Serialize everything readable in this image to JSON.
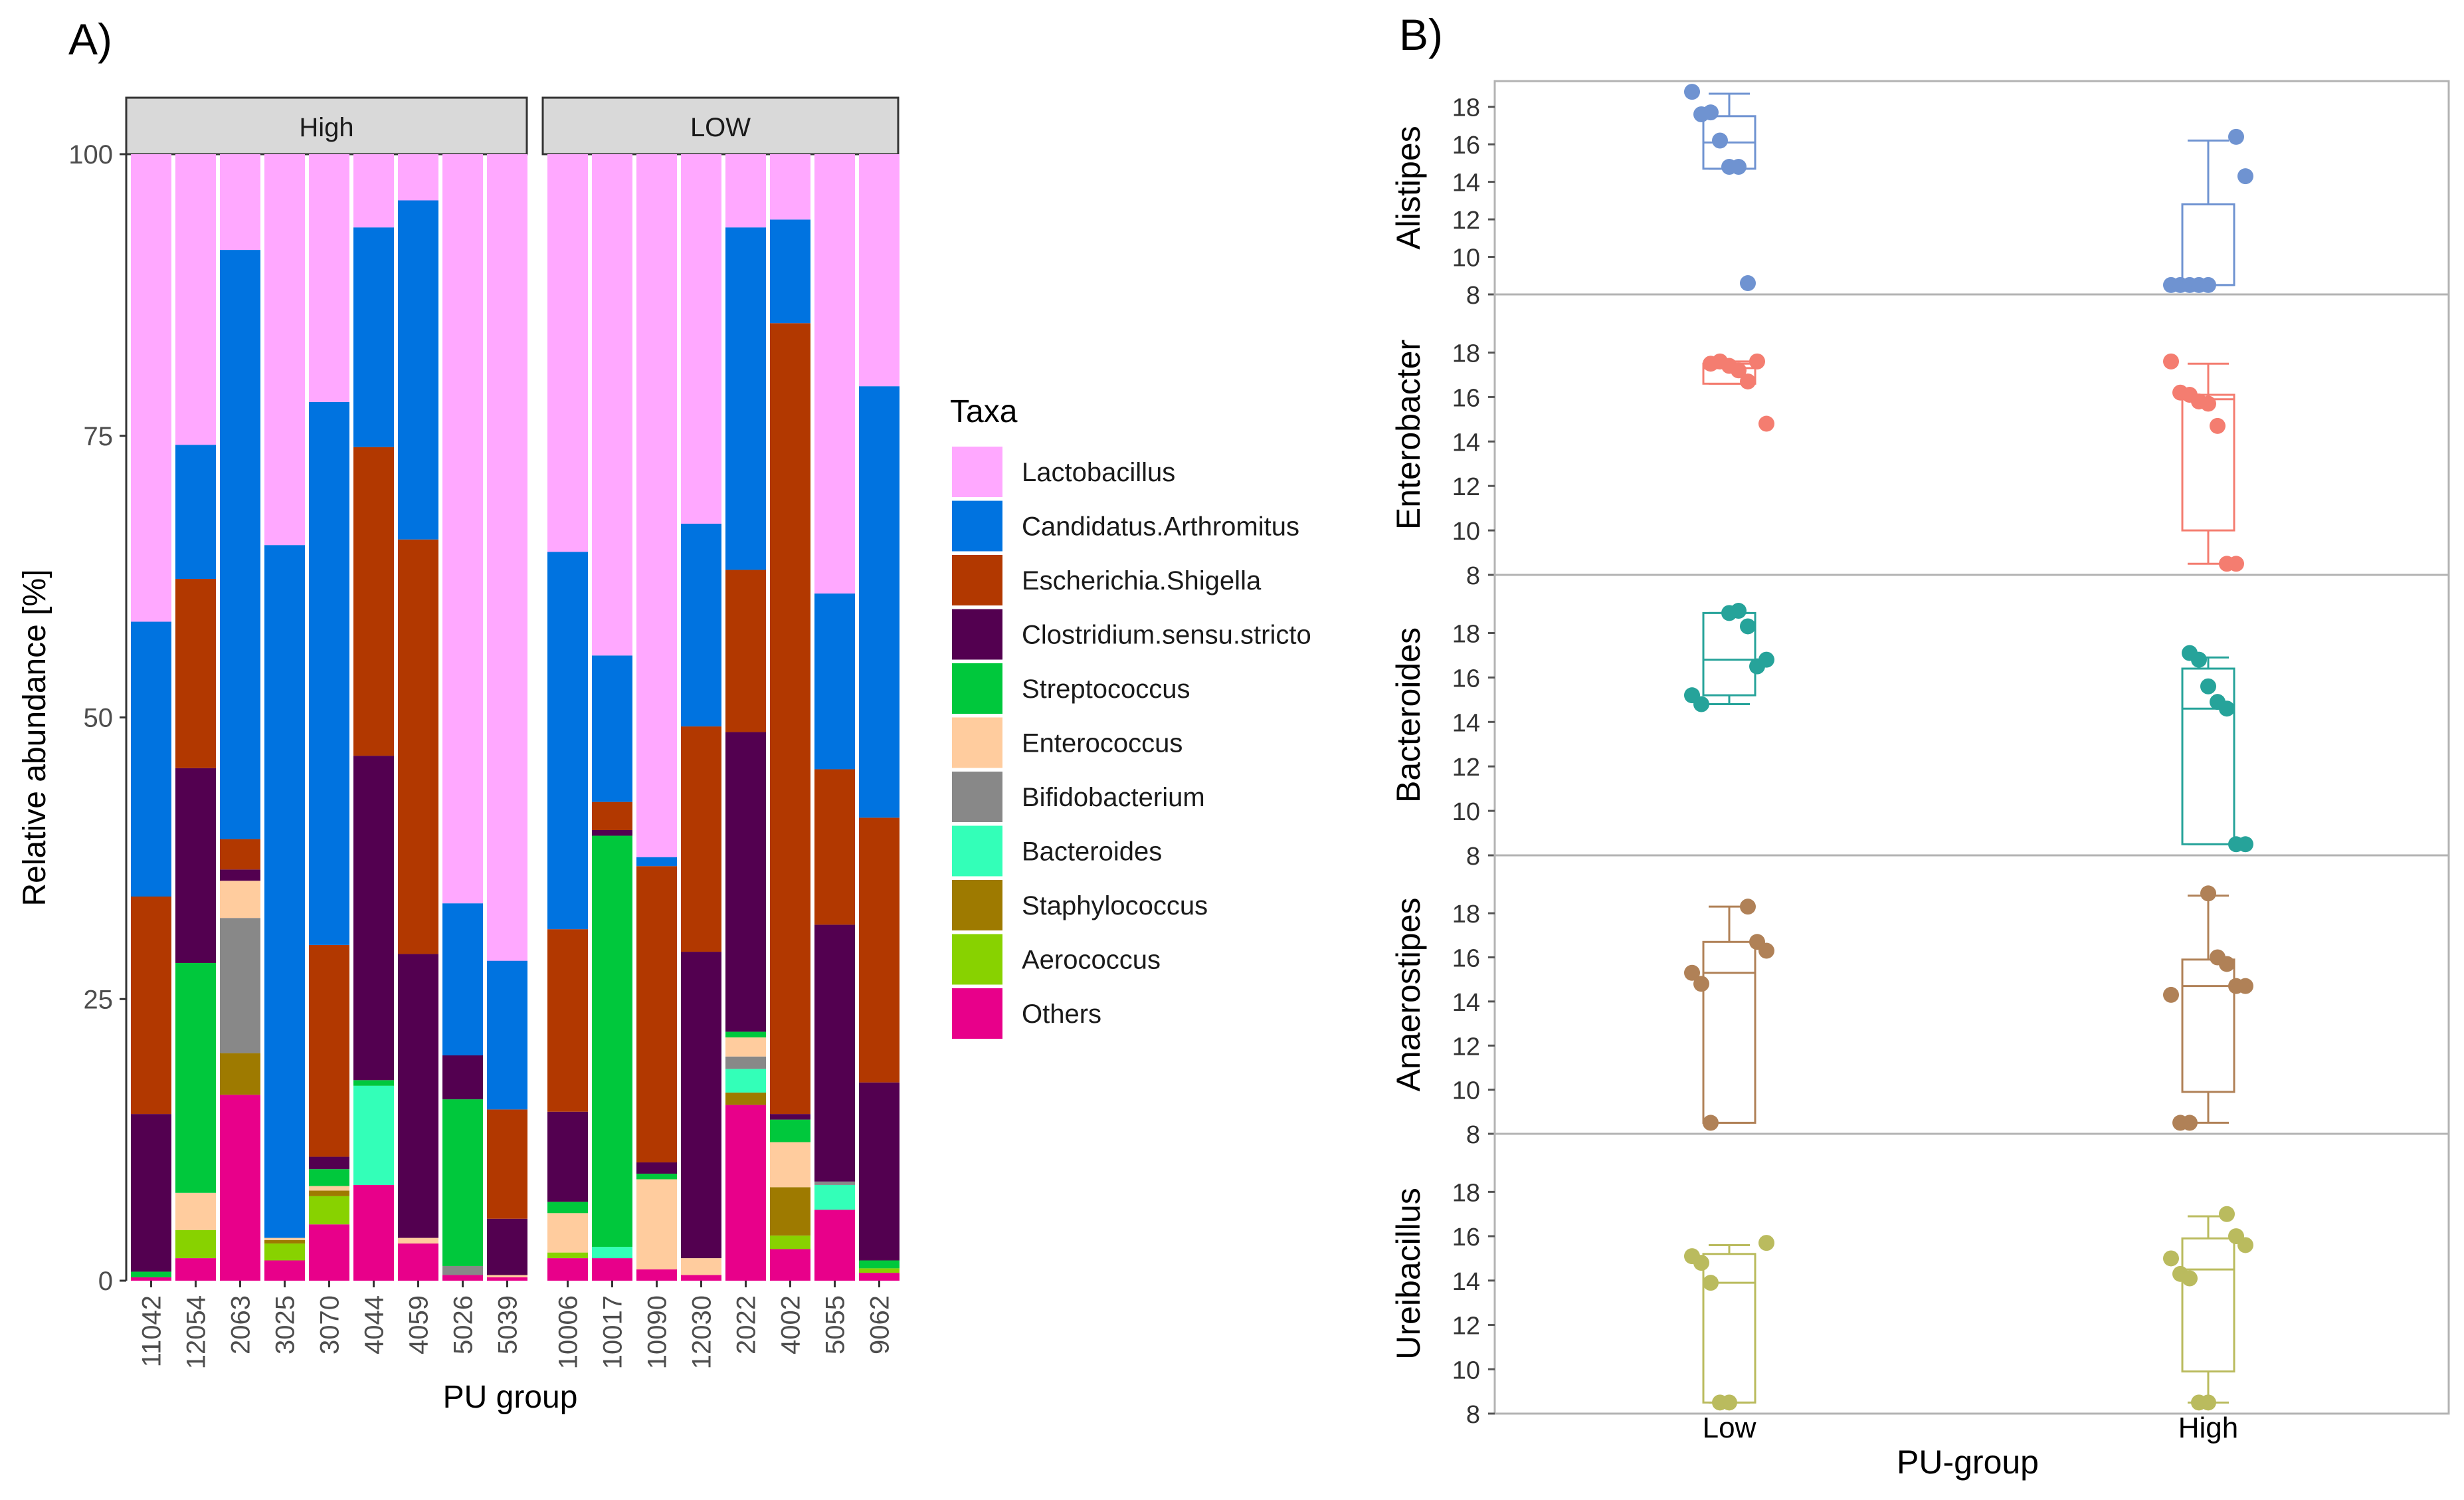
{
  "chart_data": [
    {
      "panel_label": "A)",
      "type": "bar",
      "stacked": true,
      "xlabel": "PU group",
      "ylabel": "Relative abundance [%]",
      "ylim": [
        0,
        100
      ],
      "yticks": [
        0,
        25,
        50,
        75,
        100
      ],
      "legend": {
        "title": "Taxa",
        "placement": "right",
        "entries": [
          {
            "name": "Lactobacillus",
            "color": "#FFA8FF"
          },
          {
            "name": "Candidatus.Arthromitus",
            "color": "#0073E0"
          },
          {
            "name": "Escherichia.Shigella",
            "color": "#B23800"
          },
          {
            "name": "Clostridium.sensu.stricto",
            "color": "#530050"
          },
          {
            "name": "Streptococcus",
            "color": "#00C83C"
          },
          {
            "name": "Enterococcus",
            "color": "#FFCC9E"
          },
          {
            "name": "Bifidobacterium",
            "color": "#888888"
          },
          {
            "name": "Bacteroides",
            "color": "#33FFB8"
          },
          {
            "name": "Staphylococcus",
            "color": "#9E7A00"
          },
          {
            "name": "Aerococcus",
            "color": "#88D200"
          },
          {
            "name": "Others",
            "color": "#E8008A"
          }
        ]
      },
      "stack_order_bottom_to_top": [
        "Others",
        "Aerococcus",
        "Staphylococcus",
        "Bacteroides",
        "Bifidobacterium",
        "Enterococcus",
        "Streptococcus",
        "Clostridium.sensu.stricto",
        "Escherichia.Shigella",
        "Candidatus.Arthromitus",
        "Lactobacillus"
      ],
      "facets": [
        {
          "label": "High",
          "samples": [
            {
              "id": "11042",
              "values": {
                "Others": 0.3,
                "Aerococcus": 0,
                "Staphylococcus": 0,
                "Bacteroides": 0,
                "Bifidobacterium": 0,
                "Enterococcus": 0,
                "Streptococcus": 0.5,
                "Clostridium.sensu.stricto": 14,
                "Escherichia.Shigella": 19.3,
                "Candidatus.Arthromitus": 24.4,
                "Lactobacillus": 41.5
              }
            },
            {
              "id": "12054",
              "values": {
                "Others": 2,
                "Aerococcus": 2.5,
                "Staphylococcus": 0,
                "Bacteroides": 0,
                "Bifidobacterium": 0,
                "Enterococcus": 3.3,
                "Streptococcus": 20.4,
                "Clostridium.sensu.stricto": 17.3,
                "Escherichia.Shigella": 16.8,
                "Candidatus.Arthromitus": 11.9,
                "Lactobacillus": 25.8
              }
            },
            {
              "id": "2063",
              "values": {
                "Others": 16.5,
                "Aerococcus": 0,
                "Staphylococcus": 3.7,
                "Bacteroides": 0,
                "Bifidobacterium": 12,
                "Enterococcus": 3.3,
                "Streptococcus": 0,
                "Clostridium.sensu.stricto": 1,
                "Escherichia.Shigella": 2.7,
                "Candidatus.Arthromitus": 52.3,
                "Lactobacillus": 8.5
              }
            },
            {
              "id": "3025",
              "values": {
                "Others": 1.8,
                "Aerococcus": 1.5,
                "Staphylococcus": 0.3,
                "Bacteroides": 0,
                "Bifidobacterium": 0,
                "Enterococcus": 0.2,
                "Streptococcus": 0,
                "Clostridium.sensu.stricto": 0,
                "Escherichia.Shigella": 0,
                "Candidatus.Arthromitus": 61.5,
                "Lactobacillus": 34.7
              }
            },
            {
              "id": "3070",
              "values": {
                "Others": 5,
                "Aerococcus": 2.5,
                "Staphylococcus": 0.5,
                "Bacteroides": 0,
                "Bifidobacterium": 0,
                "Enterococcus": 0.4,
                "Streptococcus": 1.5,
                "Clostridium.sensu.stricto": 1.1,
                "Escherichia.Shigella": 18.8,
                "Candidatus.Arthromitus": 48.2,
                "Lactobacillus": 22
              }
            },
            {
              "id": "4044",
              "values": {
                "Others": 8.5,
                "Aerococcus": 0,
                "Staphylococcus": 0,
                "Bacteroides": 8.8,
                "Bifidobacterium": 0,
                "Enterococcus": 0,
                "Streptococcus": 0.5,
                "Clostridium.sensu.stricto": 28.8,
                "Escherichia.Shigella": 27.4,
                "Candidatus.Arthromitus": 19.5,
                "Lactobacillus": 6.5
              }
            },
            {
              "id": "4059",
              "values": {
                "Others": 3.3,
                "Aerococcus": 0,
                "Staphylococcus": 0,
                "Bacteroides": 0,
                "Bifidobacterium": 0,
                "Enterococcus": 0.5,
                "Streptococcus": 0,
                "Clostridium.sensu.stricto": 25.2,
                "Escherichia.Shigella": 36.8,
                "Candidatus.Arthromitus": 30.1,
                "Lactobacillus": 4.1
              }
            },
            {
              "id": "5026",
              "values": {
                "Others": 0.5,
                "Aerococcus": 0,
                "Staphylococcus": 0,
                "Bacteroides": 0,
                "Bifidobacterium": 0.8,
                "Enterococcus": 0,
                "Streptococcus": 14.8,
                "Clostridium.sensu.stricto": 3.9,
                "Escherichia.Shigella": 0,
                "Candidatus.Arthromitus": 13.5,
                "Lactobacillus": 66.5
              }
            },
            {
              "id": "5039",
              "values": {
                "Others": 0.3,
                "Aerococcus": 0,
                "Staphylococcus": 0,
                "Bacteroides": 0,
                "Bifidobacterium": 0,
                "Enterococcus": 0.2,
                "Streptococcus": 0,
                "Clostridium.sensu.stricto": 5,
                "Escherichia.Shigella": 9.7,
                "Candidatus.Arthromitus": 13.2,
                "Lactobacillus": 71.6
              }
            }
          ]
        },
        {
          "label": "LOW",
          "samples": [
            {
              "id": "10006",
              "values": {
                "Others": 2,
                "Aerococcus": 0.5,
                "Staphylococcus": 0,
                "Bacteroides": 0,
                "Bifidobacterium": 0,
                "Enterococcus": 3.5,
                "Streptococcus": 1,
                "Clostridium.sensu.stricto": 8,
                "Escherichia.Shigella": 16.2,
                "Candidatus.Arthromitus": 33.5,
                "Lactobacillus": 35.3
              }
            },
            {
              "id": "10017",
              "values": {
                "Others": 2,
                "Aerococcus": 0,
                "Staphylococcus": 0,
                "Bacteroides": 1,
                "Bifidobacterium": 0,
                "Enterococcus": 0,
                "Streptococcus": 36.5,
                "Clostridium.sensu.stricto": 0.5,
                "Escherichia.Shigella": 2.5,
                "Candidatus.Arthromitus": 13,
                "Lactobacillus": 44.5
              }
            },
            {
              "id": "10090",
              "values": {
                "Others": 1,
                "Aerococcus": 0,
                "Staphylococcus": 0,
                "Bacteroides": 0,
                "Bifidobacterium": 0,
                "Enterococcus": 8,
                "Streptococcus": 0.5,
                "Clostridium.sensu.stricto": 1,
                "Escherichia.Shigella": 26.3,
                "Candidatus.Arthromitus": 0.8,
                "Lactobacillus": 62.4
              }
            },
            {
              "id": "12030",
              "values": {
                "Others": 0.5,
                "Aerococcus": 0,
                "Staphylococcus": 0,
                "Bacteroides": 0,
                "Bifidobacterium": 0,
                "Enterococcus": 1.5,
                "Streptococcus": 0,
                "Clostridium.sensu.stricto": 27.2,
                "Escherichia.Shigella": 20,
                "Candidatus.Arthromitus": 18,
                "Lactobacillus": 32.8
              }
            },
            {
              "id": "2022",
              "values": {
                "Others": 15.6,
                "Aerococcus": 0,
                "Staphylococcus": 1.1,
                "Bacteroides": 2.1,
                "Bifidobacterium": 1.1,
                "Enterococcus": 1.7,
                "Streptococcus": 0.5,
                "Clostridium.sensu.stricto": 26.6,
                "Escherichia.Shigella": 14.4,
                "Candidatus.Arthromitus": 30.4,
                "Lactobacillus": 6.5
              }
            },
            {
              "id": "4002",
              "values": {
                "Others": 2.8,
                "Aerococcus": 1.2,
                "Staphylococcus": 4.3,
                "Bacteroides": 0,
                "Bifidobacterium": 0,
                "Enterococcus": 4,
                "Streptococcus": 2,
                "Clostridium.sensu.stricto": 0.5,
                "Escherichia.Shigella": 70.2,
                "Candidatus.Arthromitus": 9.2,
                "Lactobacillus": 5.8
              }
            },
            {
              "id": "5055",
              "values": {
                "Others": 6.3,
                "Aerococcus": 0,
                "Staphylococcus": 0,
                "Bacteroides": 2.2,
                "Bifidobacterium": 0.3,
                "Enterococcus": 0,
                "Streptococcus": 0,
                "Clostridium.sensu.stricto": 22.8,
                "Escherichia.Shigella": 13.8,
                "Candidatus.Arthromitus": 15.6,
                "Lactobacillus": 39
              }
            },
            {
              "id": "9062",
              "values": {
                "Others": 0.7,
                "Aerococcus": 0.4,
                "Staphylococcus": 0,
                "Bacteroides": 0,
                "Bifidobacterium": 0,
                "Enterococcus": 0,
                "Streptococcus": 0.7,
                "Clostridium.sensu.stricto": 15.8,
                "Escherichia.Shigella": 23.5,
                "Candidatus.Arthromitus": 38.3,
                "Lactobacillus": 20.6
              }
            }
          ]
        }
      ]
    },
    {
      "panel_label": "B)",
      "type": "box",
      "xlabel": "PU-group",
      "categories": [
        "Low",
        "High"
      ],
      "ylim": [
        8,
        19.3
      ],
      "yticks": [
        8,
        10,
        12,
        14,
        16,
        18
      ],
      "grid": false,
      "panels": [
        {
          "name": "Alistipes",
          "color": "#6F93D1",
          "groups": [
            {
              "group": "Low",
              "box": {
                "min": 14.7,
                "q1": 14.7,
                "median": 16.1,
                "q3": 17.5,
                "max": 18.7
              },
              "points": [
                18.8,
                17.6,
                17.7,
                16.2,
                14.8,
                14.8,
                8.6
              ]
            },
            {
              "group": "High",
              "box": {
                "min": 8.5,
                "q1": 8.5,
                "median": 8.5,
                "q3": 12.8,
                "max": 16.2
              },
              "points": [
                16.4,
                14.3,
                8.5,
                8.5,
                8.5,
                8.5,
                8.5
              ]
            }
          ]
        },
        {
          "name": "Enterobacter",
          "color": "#F47D70",
          "groups": [
            {
              "group": "Low",
              "box": {
                "min": 16.6,
                "q1": 16.6,
                "median": 17.3,
                "q3": 17.5,
                "max": 17.6
              },
              "points": [
                17.5,
                17.6,
                17.4,
                17.2,
                16.7,
                17.6,
                14.8
              ]
            },
            {
              "group": "High",
              "box": {
                "min": 8.5,
                "q1": 10,
                "median": 15.9,
                "q3": 16.1,
                "max": 17.5
              },
              "points": [
                17.6,
                16.2,
                16.1,
                15.8,
                15.7,
                14.7,
                8.5,
                8.5
              ]
            }
          ]
        },
        {
          "name": "Bacteroides",
          "color": "#26A39A",
          "groups": [
            {
              "group": "Low",
              "box": {
                "min": 14.8,
                "q1": 15.2,
                "median": 16.8,
                "q3": 18.9,
                "max": 18.9
              },
              "points": [
                18.9,
                19,
                18.3,
                16.5,
                16.8,
                15.2,
                14.8
              ]
            },
            {
              "group": "High",
              "box": {
                "min": 8.5,
                "q1": 8.5,
                "median": 14.6,
                "q3": 16.4,
                "max": 16.9
              },
              "points": [
                17.1,
                16.8,
                15.6,
                14.9,
                14.6,
                8.5,
                8.5
              ]
            }
          ]
        },
        {
          "name": "Anaerostipes",
          "color": "#B08157",
          "groups": [
            {
              "group": "Low",
              "box": {
                "min": 8.5,
                "q1": 8.5,
                "median": 15.3,
                "q3": 16.7,
                "max": 18.3
              },
              "points": [
                18.3,
                16.7,
                16.3,
                15.3,
                14.8,
                8.5
              ]
            },
            {
              "group": "High",
              "box": {
                "min": 8.5,
                "q1": 9.9,
                "median": 14.7,
                "q3": 15.9,
                "max": 18.8
              },
              "points": [
                18.9,
                16,
                15.7,
                14.7,
                14.7,
                14.3,
                8.5,
                8.5
              ]
            }
          ]
        },
        {
          "name": "Ureibacillus",
          "color": "#BABB5E",
          "groups": [
            {
              "group": "Low",
              "box": {
                "min": 8.5,
                "q1": 8.5,
                "median": 13.9,
                "q3": 15.2,
                "max": 15.6
              },
              "points": [
                15.7,
                15.1,
                14.8,
                13.9,
                8.5,
                8.5
              ]
            },
            {
              "group": "High",
              "box": {
                "min": 8.5,
                "q1": 9.9,
                "median": 14.5,
                "q3": 15.9,
                "max": 16.9
              },
              "points": [
                17,
                16,
                15.6,
                15,
                14.3,
                14.1,
                8.5,
                8.5
              ]
            }
          ]
        }
      ]
    }
  ]
}
